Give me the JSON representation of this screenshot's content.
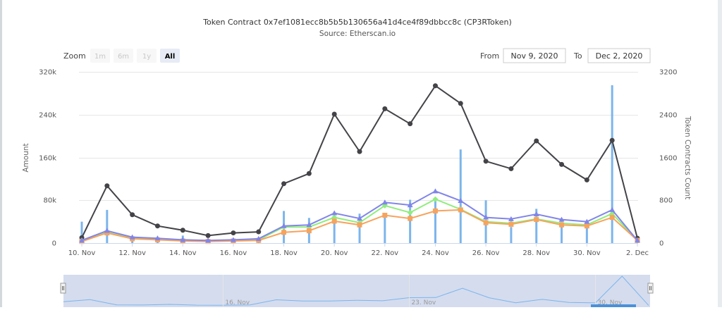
{
  "chart_data": {
    "type": "line",
    "title": "Token Contract 0x7ef1081ecc8b5b5b130656a41d4ce4f89dbbcc8c (CP3RToken)",
    "subtitle": "Source: Etherscan.io",
    "ylabel_left": "Amount",
    "ylabel_right": "Token Contracts Count",
    "ylim_left": [
      0,
      320000
    ],
    "ylim_right": [
      0,
      3200
    ],
    "yticks_left": [
      "0",
      "80k",
      "160k",
      "240k",
      "320k"
    ],
    "yticks_right": [
      "0",
      "800",
      "1600",
      "2400",
      "3200"
    ],
    "x": [
      "Nov 10",
      "Nov 11",
      "Nov 12",
      "Nov 13",
      "Nov 14",
      "Nov 15",
      "Nov 16",
      "Nov 17",
      "Nov 18",
      "Nov 19",
      "Nov 20",
      "Nov 21",
      "Nov 22",
      "Nov 23",
      "Nov 24",
      "Nov 25",
      "Nov 26",
      "Nov 27",
      "Nov 28",
      "Nov 29",
      "Nov 30",
      "Dec 1",
      "Dec 2"
    ],
    "xticks": [
      "10. Nov",
      "12. Nov",
      "14. Nov",
      "16. Nov",
      "18. Nov",
      "20. Nov",
      "22. Nov",
      "24. Nov",
      "26. Nov",
      "28. Nov",
      "30. Nov",
      "2. Dec"
    ],
    "series": [
      {
        "color": "#434348",
        "axis": "left",
        "type": "line",
        "values": [
          10000,
          107000,
          53000,
          32000,
          24000,
          14000,
          19000,
          21000,
          111000,
          130000,
          241000,
          171000,
          251000,
          223000,
          294000,
          261000,
          153000,
          139000,
          191000,
          147000,
          118000,
          192000,
          9000
        ]
      },
      {
        "color": "#90ed7d",
        "axis": "left",
        "type": "line",
        "values": [
          5000,
          20000,
          9000,
          7000,
          5000,
          4000,
          5000,
          6000,
          30000,
          30000,
          48000,
          38000,
          70000,
          57000,
          82000,
          63000,
          40000,
          37000,
          45000,
          37000,
          34000,
          55000,
          5000
        ]
      },
      {
        "color": "#f7a35c",
        "axis": "left",
        "type": "line",
        "values": [
          3000,
          19000,
          8000,
          6000,
          4000,
          3000,
          4000,
          5000,
          20000,
          23000,
          41000,
          34000,
          52000,
          46000,
          60000,
          62000,
          38000,
          35000,
          44000,
          34000,
          32000,
          48000,
          5000
        ]
      },
      {
        "color": "#8085e9",
        "axis": "left",
        "type": "line",
        "values": [
          5000,
          23000,
          11000,
          9000,
          6000,
          5000,
          6000,
          8000,
          32000,
          34000,
          56000,
          46000,
          76000,
          71000,
          97000,
          79000,
          48000,
          45000,
          54000,
          44000,
          40000,
          62000,
          5000
        ]
      },
      {
        "color": "#7cb5ec",
        "axis": "right",
        "type": "bar",
        "values": [
          400,
          620,
          90,
          80,
          140,
          60,
          50,
          80,
          600,
          470,
          470,
          550,
          500,
          810,
          820,
          1750,
          800,
          300,
          640,
          330,
          290,
          2950,
          30
        ]
      }
    ],
    "range_selector": {
      "zoom_label": "Zoom",
      "buttons": [
        "1m",
        "6m",
        "1y",
        "All"
      ],
      "active": "All",
      "from_label": "From",
      "from_value": "Nov 9, 2020",
      "to_label": "To",
      "to_value": "Dec 2, 2020"
    },
    "navigator": {
      "ticks": [
        "16. Nov",
        "23. Nov",
        "30. Nov"
      ]
    }
  }
}
